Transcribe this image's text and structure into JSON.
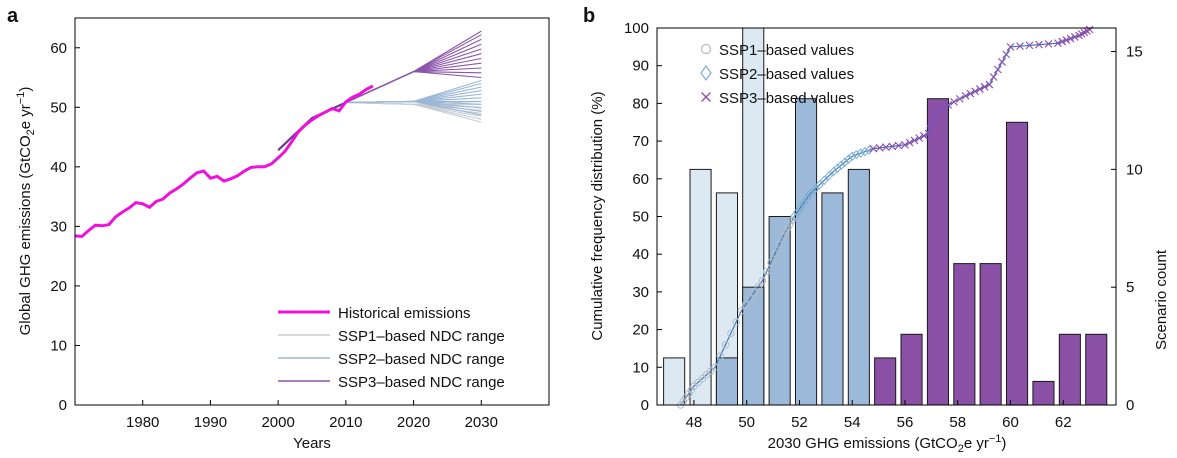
{
  "chart_data": [
    {
      "panel": "a",
      "type": "line",
      "xlabel": "Years",
      "ylabel_parts": [
        "Global GHG emissions (GtCO",
        "2",
        "e yr",
        "−1",
        ")"
      ],
      "xlim": [
        1970,
        2040
      ],
      "ylim": [
        0,
        65
      ],
      "xticks": [
        1980,
        1990,
        2000,
        2010,
        2020,
        2030
      ],
      "yticks": [
        0,
        10,
        20,
        30,
        40,
        50,
        60
      ],
      "colors": {
        "historical": "#ee11dd",
        "ssp1": "#c8cdd3",
        "ssp2": "#9bb7d6",
        "ssp3": "#8a55a8",
        "ssp3_dark": "#6a3b8a"
      },
      "historical": {
        "name": "Historical emissions",
        "x": [
          1970,
          1971,
          1972,
          1973,
          1974,
          1975,
          1976,
          1977,
          1978,
          1979,
          1980,
          1981,
          1982,
          1983,
          1984,
          1985,
          1986,
          1987,
          1988,
          1989,
          1990,
          1991,
          1992,
          1993,
          1994,
          1995,
          1996,
          1997,
          1998,
          1999,
          2000,
          2001,
          2002,
          2003,
          2004,
          2005,
          2006,
          2007,
          2008,
          2009,
          2010,
          2011,
          2012,
          2013,
          2014
        ],
        "y": [
          28.4,
          28.3,
          29.3,
          30.2,
          30.1,
          30.3,
          31.6,
          32.4,
          33.1,
          34.0,
          33.8,
          33.2,
          34.2,
          34.6,
          35.6,
          36.3,
          37.1,
          38.1,
          39.0,
          39.3,
          38.1,
          38.4,
          37.6,
          38.0,
          38.5,
          39.3,
          39.9,
          40.0,
          40.0,
          40.5,
          41.5,
          42.6,
          44.2,
          45.9,
          47.0,
          47.9,
          48.6,
          49.2,
          49.8,
          49.4,
          50.9,
          51.7,
          52.2,
          53.0,
          53.6
        ]
      },
      "ssp_legend": [
        "SSP1–based NDC range",
        "SSP2–based NDC range",
        "SSP3–based NDC range"
      ],
      "scenario_base": {
        "x": [
          2000,
          2005,
          2010
        ],
        "y": [
          42.8,
          48.2,
          50.8
        ]
      },
      "ssp1_ends": [
        47.5,
        48.0,
        48.5,
        49.0,
        49.5,
        50.0,
        50.5,
        51.0
      ],
      "ssp2_ends": [
        48.7,
        49.3,
        49.9,
        50.5,
        51.0,
        51.6,
        52.2,
        52.8,
        53.4,
        54.0,
        54.5
      ],
      "ssp3_ends": [
        55.0,
        55.8,
        56.6,
        57.4,
        58.2,
        59.0,
        59.8,
        60.6,
        61.4,
        62.2,
        62.8
      ]
    },
    {
      "panel": "b",
      "type": "bar",
      "xlabel_parts": [
        "2030 GHG emissions (GtCO",
        "2",
        "e yr",
        "−1",
        ")"
      ],
      "ylabel_left": "Cumulative frequency distribution (%)",
      "ylabel_right": "Scenario count",
      "xlim": [
        46.6,
        64.0
      ],
      "ylim_left": [
        0,
        100
      ],
      "ylim_right": [
        0,
        16
      ],
      "xticks": [
        48,
        50,
        52,
        54,
        56,
        58,
        60,
        62
      ],
      "yticks_left": [
        0,
        10,
        20,
        30,
        40,
        50,
        60,
        70,
        80,
        90,
        100
      ],
      "yticks_right": [
        0,
        5,
        10,
        15
      ],
      "legend": [
        "SSP1–based values",
        "SSP2–based values",
        "SSP3–based values"
      ],
      "bars": [
        {
          "x": 47.25,
          "count": 2,
          "ssp": 1
        },
        {
          "x": 48.25,
          "count": 10,
          "ssp": 1
        },
        {
          "x": 49.25,
          "count": 9,
          "ssp": 1
        },
        {
          "x": 50.25,
          "count": 16,
          "ssp": 1
        },
        {
          "x": 49.25,
          "count": 2,
          "ssp": 2
        },
        {
          "x": 50.25,
          "count": 5,
          "ssp": 2
        },
        {
          "x": 51.25,
          "count": 8,
          "ssp": 2
        },
        {
          "x": 52.25,
          "count": 13,
          "ssp": 2
        },
        {
          "x": 53.25,
          "count": 9,
          "ssp": 2
        },
        {
          "x": 54.25,
          "count": 10,
          "ssp": 2
        },
        {
          "x": 55.25,
          "count": 2,
          "ssp": 3
        },
        {
          "x": 56.25,
          "count": 3,
          "ssp": 3
        },
        {
          "x": 57.25,
          "count": 13,
          "ssp": 3
        },
        {
          "x": 58.25,
          "count": 6,
          "ssp": 3
        },
        {
          "x": 59.25,
          "count": 6,
          "ssp": 3
        },
        {
          "x": 60.25,
          "count": 12,
          "ssp": 3
        },
        {
          "x": 61.25,
          "count": 1,
          "ssp": 3
        },
        {
          "x": 62.25,
          "count": 3,
          "ssp": 3
        },
        {
          "x": 63.25,
          "count": 3,
          "ssp": 3
        }
      ],
      "cdf_anchors": [
        {
          "x": 47.5,
          "y": 0,
          "ssp": 1
        },
        {
          "x": 48.0,
          "y": 5,
          "ssp": 1
        },
        {
          "x": 48.8,
          "y": 10,
          "ssp": 1
        },
        {
          "x": 49.8,
          "y": 25,
          "ssp": 1
        },
        {
          "x": 50.6,
          "y": 33,
          "ssp": 1
        },
        {
          "x": 51.4,
          "y": 45,
          "ssp": 1
        },
        {
          "x": 51.8,
          "y": 50,
          "ssp": 2
        },
        {
          "x": 52.4,
          "y": 56,
          "ssp": 2
        },
        {
          "x": 53.3,
          "y": 62,
          "ssp": 2
        },
        {
          "x": 54.0,
          "y": 66,
          "ssp": 2
        },
        {
          "x": 54.8,
          "y": 68,
          "ssp": 3
        },
        {
          "x": 56.0,
          "y": 69,
          "ssp": 3
        },
        {
          "x": 56.9,
          "y": 72,
          "ssp": 3
        },
        {
          "x": 57.2,
          "y": 78,
          "ssp": 3
        },
        {
          "x": 58.3,
          "y": 82,
          "ssp": 3
        },
        {
          "x": 59.2,
          "y": 85,
          "ssp": 3
        },
        {
          "x": 60.0,
          "y": 95,
          "ssp": 3
        },
        {
          "x": 61.8,
          "y": 96,
          "ssp": 3
        },
        {
          "x": 62.6,
          "y": 98,
          "ssp": 3
        },
        {
          "x": 63.1,
          "y": 100,
          "ssp": 3
        }
      ],
      "colors": {
        "ssp1_fill": "#dce9f2",
        "ssp2_fill": "#9cb9d9",
        "ssp3_fill": "#8950a6",
        "cdf_line": "#3f7ab5",
        "marker1": "#b5bcc4",
        "marker2": "#7aaed3",
        "marker3": "#8a4bb0"
      }
    }
  ]
}
